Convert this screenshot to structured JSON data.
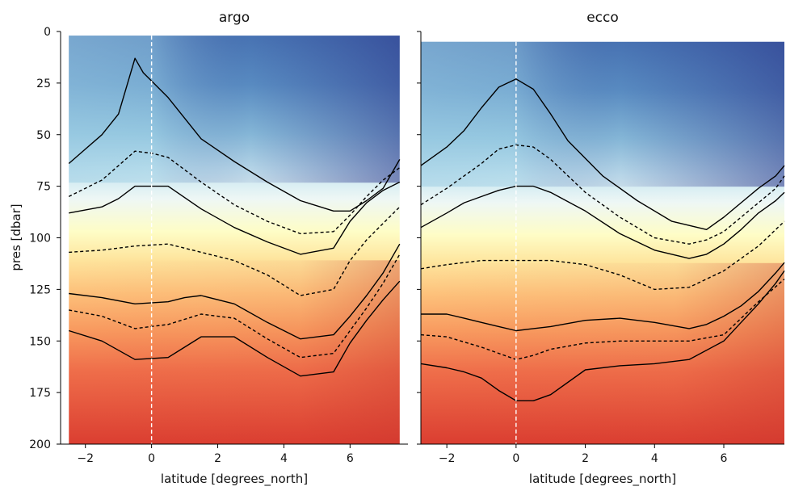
{
  "chart_data": [
    {
      "type": "contour",
      "title": "argo",
      "xlabel": "latitude [degrees_north]",
      "ylabel": "pres [dbar]",
      "xlim": [
        -2.75,
        7.75
      ],
      "ylim": [
        200,
        0
      ],
      "xticks": [
        -2,
        0,
        2,
        4,
        6
      ],
      "yticks": [
        0,
        25,
        50,
        75,
        100,
        125,
        150,
        175,
        200
      ],
      "data_x_range": [
        -2.5,
        7.5
      ],
      "data_top": 2,
      "contours": [
        {
          "style": "solid",
          "lat": [
            -2.5,
            -2,
            -1.5,
            -1,
            -0.5,
            -0.25,
            0,
            0.5,
            1.5,
            2.5,
            3.5,
            4.5,
            5.5,
            6,
            6.5,
            7,
            7.5
          ],
          "pres": [
            64,
            57,
            50,
            40,
            13,
            20,
            24,
            32,
            52,
            63,
            73,
            82,
            87,
            87,
            82,
            76,
            62
          ]
        },
        {
          "style": "dashed",
          "lat": [
            -2.5,
            -2,
            -1.5,
            -1,
            -0.5,
            0,
            0.5,
            1.5,
            2.5,
            3.5,
            4.5,
            5.5,
            6,
            6.5,
            7,
            7.5
          ],
          "pres": [
            80,
            76,
            72,
            65,
            58,
            59,
            61,
            73,
            84,
            92,
            98,
            97,
            89,
            80,
            72,
            66
          ]
        },
        {
          "style": "solid",
          "lat": [
            -2.5,
            -1.5,
            -1,
            -0.5,
            0,
            0.5,
            1.5,
            2.5,
            3.5,
            4.5,
            5.5,
            6,
            6.5,
            7,
            7.5
          ],
          "pres": [
            88,
            85,
            81,
            75,
            75,
            75,
            86,
            95,
            102,
            108,
            105,
            92,
            83,
            77,
            73
          ]
        },
        {
          "style": "dashed",
          "lat": [
            -2.5,
            -1.5,
            -0.5,
            0.5,
            1.5,
            2.5,
            3.5,
            4.5,
            5.5,
            6,
            6.5,
            7,
            7.5
          ],
          "pres": [
            107,
            106,
            104,
            103,
            107,
            111,
            118,
            128,
            125,
            111,
            101,
            93,
            85
          ]
        },
        {
          "style": "solid",
          "lat": [
            -2.5,
            -1.5,
            -0.5,
            0.5,
            1,
            1.5,
            2.5,
            3.5,
            4.5,
            5.5,
            6,
            6.5,
            7,
            7.5
          ],
          "pres": [
            127,
            129,
            132,
            131,
            129,
            128,
            132,
            141,
            149,
            147,
            138,
            128,
            117,
            103
          ]
        },
        {
          "style": "dashed",
          "lat": [
            -2.5,
            -1.5,
            -0.5,
            0.5,
            1.5,
            2.5,
            3.5,
            4.5,
            5.5,
            6,
            6.5,
            7,
            7.5
          ],
          "pres": [
            135,
            138,
            144,
            142,
            137,
            139,
            149,
            158,
            156,
            145,
            134,
            122,
            108
          ]
        },
        {
          "style": "solid",
          "lat": [
            -2.5,
            -1.5,
            -0.5,
            0.5,
            1,
            1.5,
            2.5,
            3.5,
            4.5,
            5.5,
            6,
            6.5,
            7,
            7.5
          ],
          "pres": [
            145,
            150,
            159,
            158,
            153,
            148,
            148,
            158,
            167,
            165,
            151,
            140,
            130,
            121
          ]
        }
      ]
    },
    {
      "type": "contour",
      "title": "ecco",
      "xlabel": "latitude [degrees_north]",
      "ylabel": "",
      "xlim": [
        -2.75,
        7.75
      ],
      "ylim": [
        200,
        0
      ],
      "xticks": [
        -2,
        0,
        2,
        4,
        6
      ],
      "yticks": [
        0,
        25,
        50,
        75,
        100,
        125,
        150,
        175,
        200
      ],
      "data_x_range": [
        -2.75,
        7.75
      ],
      "data_top": 5,
      "contours": [
        {
          "style": "solid",
          "lat": [
            -2.75,
            -2,
            -1.5,
            -1,
            -0.5,
            -0.25,
            0,
            0.5,
            1,
            1.5,
            2.5,
            3.5,
            4.5,
            5.5,
            6,
            6.5,
            7,
            7.5,
            7.75
          ],
          "pres": [
            65,
            56,
            48,
            37,
            27,
            25,
            23,
            28,
            40,
            53,
            70,
            82,
            92,
            96,
            90,
            83,
            76,
            70,
            65
          ]
        },
        {
          "style": "dashed",
          "lat": [
            -2.75,
            -2,
            -1.5,
            -1,
            -0.5,
            0,
            0.5,
            1,
            2,
            3,
            4,
            5,
            5.5,
            6,
            6.5,
            7,
            7.5,
            7.75
          ],
          "pres": [
            84,
            76,
            70,
            64,
            57,
            55,
            56,
            62,
            78,
            90,
            100,
            103,
            101,
            97,
            90,
            83,
            76,
            70
          ]
        },
        {
          "style": "solid",
          "lat": [
            -2.75,
            -2,
            -1.5,
            -1,
            -0.5,
            0,
            0.5,
            1,
            2,
            3,
            4,
            5,
            5.5,
            6,
            6.5,
            7,
            7.5,
            7.75
          ],
          "pres": [
            95,
            88,
            83,
            80,
            77,
            75,
            75,
            78,
            87,
            98,
            106,
            110,
            108,
            103,
            96,
            88,
            82,
            78
          ]
        },
        {
          "style": "dashed",
          "lat": [
            -2.75,
            -2,
            -1,
            0,
            1,
            2,
            3,
            4,
            5,
            6,
            7,
            7.75
          ],
          "pres": [
            115,
            113,
            111,
            111,
            111,
            113,
            118,
            125,
            124,
            116,
            104,
            92
          ]
        },
        {
          "style": "solid",
          "lat": [
            -2.75,
            -2,
            -1.5,
            -1,
            -0.5,
            0,
            0.5,
            1,
            2,
            3,
            4,
            5,
            5.5,
            6,
            6.5,
            7,
            7.5,
            7.75
          ],
          "pres": [
            137,
            137,
            139,
            141,
            143,
            145,
            144,
            143,
            140,
            139,
            141,
            144,
            142,
            138,
            133,
            126,
            117,
            112
          ]
        },
        {
          "style": "dashed",
          "lat": [
            -2.75,
            -2,
            -1,
            -0.5,
            0,
            0.5,
            1,
            2,
            3,
            4,
            5,
            6,
            7,
            7.75
          ],
          "pres": [
            147,
            148,
            153,
            156,
            159,
            157,
            154,
            151,
            150,
            150,
            150,
            147,
            131,
            120
          ]
        },
        {
          "style": "solid",
          "lat": [
            -2.75,
            -2,
            -1.5,
            -1,
            -0.5,
            0,
            0.5,
            1,
            2,
            3,
            4,
            5,
            6,
            6.5,
            7,
            7.5,
            7.75
          ],
          "pres": [
            161,
            163,
            165,
            168,
            174,
            179,
            179,
            176,
            164,
            162,
            161,
            159,
            150,
            141,
            132,
            122,
            116
          ]
        }
      ]
    }
  ]
}
